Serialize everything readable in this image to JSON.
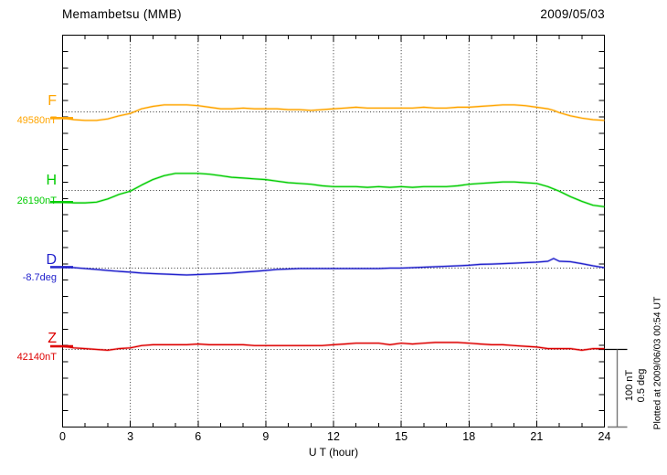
{
  "chart_data": {
    "type": "line",
    "title": "Memambetsu (MMB)",
    "station_code": "MMB",
    "date": "2009/05/03",
    "xlabel": "U T (hour)",
    "x_range": [
      0,
      24
    ],
    "x_major_ticks": [
      0,
      3,
      6,
      9,
      12,
      15,
      18,
      21,
      24
    ],
    "x_minor_tick_step": 1,
    "grid": "dotted vertical lines every 3 hours; dotted horizontal baseline per trace",
    "legend_position": "left-of-plot",
    "scale_bar": {
      "nT_label": "100 nT",
      "deg_label": "0.5 deg",
      "span_nT": 100,
      "span_deg": 0.5
    },
    "plotted_at": "Plotted at 2009/06/03 00:54 UT",
    "x": [
      0,
      0.5,
      1,
      1.5,
      2,
      2.5,
      3,
      3.5,
      4,
      4.5,
      5,
      5.5,
      6,
      6.5,
      7,
      7.5,
      8,
      8.5,
      9,
      9.5,
      10,
      10.5,
      11,
      11.5,
      12,
      12.5,
      13,
      13.5,
      14,
      14.5,
      15,
      15.5,
      16,
      16.5,
      17,
      17.5,
      18,
      18.5,
      19,
      19.5,
      20,
      20.5,
      21,
      21.5,
      21.75,
      22,
      22.5,
      23,
      23.5,
      24
    ],
    "series": [
      {
        "label": "F",
        "baseline_label": "49580nT",
        "baseline": 49580,
        "unit": "nT",
        "color": "#FFA500",
        "values": [
          49572,
          49570,
          49569,
          49569,
          49571,
          49575,
          49578,
          49584,
          49587,
          49589,
          49589,
          49589,
          49588,
          49586,
          49584,
          49584,
          49585,
          49584,
          49584,
          49584,
          49583,
          49583,
          49582,
          49583,
          49584,
          49585,
          49586,
          49585,
          49585,
          49585,
          49585,
          49585,
          49586,
          49585,
          49585,
          49586,
          49586,
          49587,
          49588,
          49589,
          49589,
          49588,
          49586,
          49584,
          49582,
          49579,
          49575,
          49572,
          49570,
          49569
        ]
      },
      {
        "label": "H",
        "baseline_label": "26190nT",
        "baseline": 26190,
        "unit": "nT",
        "color": "#00CC00",
        "values": [
          26175,
          26174,
          26174,
          26175,
          26179,
          26185,
          26189,
          26197,
          26204,
          26209,
          26212,
          26212,
          26212,
          26211,
          26209,
          26207,
          26206,
          26205,
          26204,
          26202,
          26200,
          26199,
          26198,
          26196,
          26195,
          26195,
          26195,
          26194,
          26195,
          26194,
          26195,
          26194,
          26195,
          26195,
          26195,
          26196,
          26198,
          26199,
          26200,
          26201,
          26201,
          26200,
          26199,
          26195,
          26192,
          26189,
          26182,
          26176,
          26171,
          26169
        ]
      },
      {
        "label": "D",
        "baseline_label": "-8.7deg",
        "baseline": -8.7,
        "unit": "deg",
        "color": "#2222CC",
        "values": [
          -8.694,
          -8.697,
          -8.703,
          -8.709,
          -8.715,
          -8.721,
          -8.726,
          -8.732,
          -8.735,
          -8.738,
          -8.741,
          -8.744,
          -8.741,
          -8.738,
          -8.735,
          -8.732,
          -8.726,
          -8.721,
          -8.715,
          -8.709,
          -8.706,
          -8.703,
          -8.703,
          -8.703,
          -8.703,
          -8.703,
          -8.703,
          -8.703,
          -8.703,
          -8.7,
          -8.7,
          -8.697,
          -8.694,
          -8.691,
          -8.688,
          -8.685,
          -8.682,
          -8.676,
          -8.674,
          -8.671,
          -8.668,
          -8.665,
          -8.662,
          -8.656,
          -8.638,
          -8.656,
          -8.659,
          -8.671,
          -8.685,
          -8.697
        ]
      },
      {
        "label": "Z",
        "baseline_label": "42140nT",
        "baseline": 42140,
        "unit": "nT",
        "color": "#DD0000",
        "values": [
          42144,
          42142,
          42141,
          42140,
          42139,
          42141,
          42142,
          42145,
          42146,
          42146,
          42146,
          42146,
          42147,
          42146,
          42146,
          42146,
          42146,
          42145,
          42145,
          42145,
          42145,
          42145,
          42145,
          42145,
          42146,
          42147,
          42148,
          42148,
          42148,
          42146,
          42148,
          42147,
          42148,
          42149,
          42149,
          42149,
          42148,
          42147,
          42146,
          42146,
          42145,
          42144,
          42143,
          42141,
          42141,
          42141,
          42141,
          42139,
          42141,
          42141
        ]
      }
    ]
  }
}
